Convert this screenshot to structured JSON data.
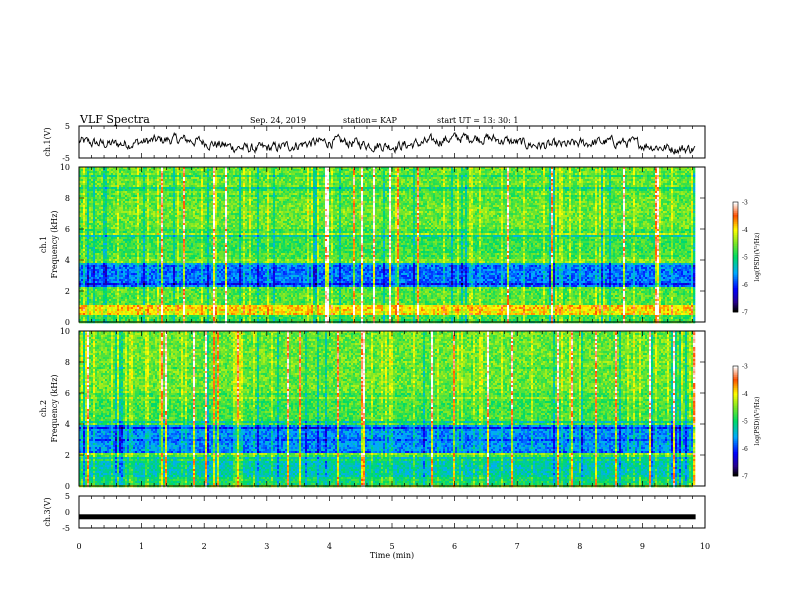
{
  "header": {
    "title": "VLF Spectra",
    "date": "Sep. 24, 2019",
    "station": "station= KAP",
    "start_ut": "start  UT =   13: 30: 1"
  },
  "chart_data": [
    {
      "id": "ch1-waveform",
      "type": "line",
      "ylabel": "ch.1(V)",
      "ylim": [
        -5,
        5
      ],
      "yticks": [
        "5",
        "-5"
      ],
      "xlim": [
        0,
        10
      ],
      "x_end": 9.85,
      "description_level": "noisy waveform around 0 V"
    },
    {
      "id": "ch1-spectrogram",
      "type": "heatmap",
      "ylabel_channel": "ch.1",
      "ylabel": "Frequency (kHz)",
      "ylim": [
        0,
        10
      ],
      "yticks": [
        "0",
        "2",
        "4",
        "6",
        "8",
        "10"
      ],
      "xlim": [
        0,
        10
      ],
      "x_end": 9.85,
      "colorbar": {
        "label": "log(PSD)(V²/Hz)",
        "range": [
          -7,
          -3
        ],
        "ticks": [
          "-3",
          "-4",
          "-5",
          "-6",
          "-7"
        ]
      }
    },
    {
      "id": "ch2-spectrogram",
      "type": "heatmap",
      "ylabel_channel": "ch.2",
      "ylabel": "Frequency (kHz)",
      "ylim": [
        0,
        10
      ],
      "yticks": [
        "0",
        "2",
        "4",
        "6",
        "8",
        "10"
      ],
      "xlim": [
        0,
        10
      ],
      "x_end": 9.85,
      "colorbar": {
        "label": "log(PSD)(V²/Hz)",
        "range": [
          -7,
          -3
        ],
        "ticks": [
          "-3",
          "-4",
          "-5",
          "-6",
          "-7"
        ]
      }
    },
    {
      "id": "ch3-waveform",
      "type": "line",
      "ylabel": "ch.3(V)",
      "ylim": [
        -5,
        5
      ],
      "yticks": [
        "5",
        "0",
        "-5"
      ],
      "xlim": [
        0,
        10
      ],
      "x_end": 9.85,
      "level": -1.5
    }
  ],
  "xaxis": {
    "label": "Time (min)",
    "ticks": [
      "0",
      "1",
      "2",
      "3",
      "4",
      "5",
      "6",
      "7",
      "8",
      "9",
      "10"
    ]
  }
}
